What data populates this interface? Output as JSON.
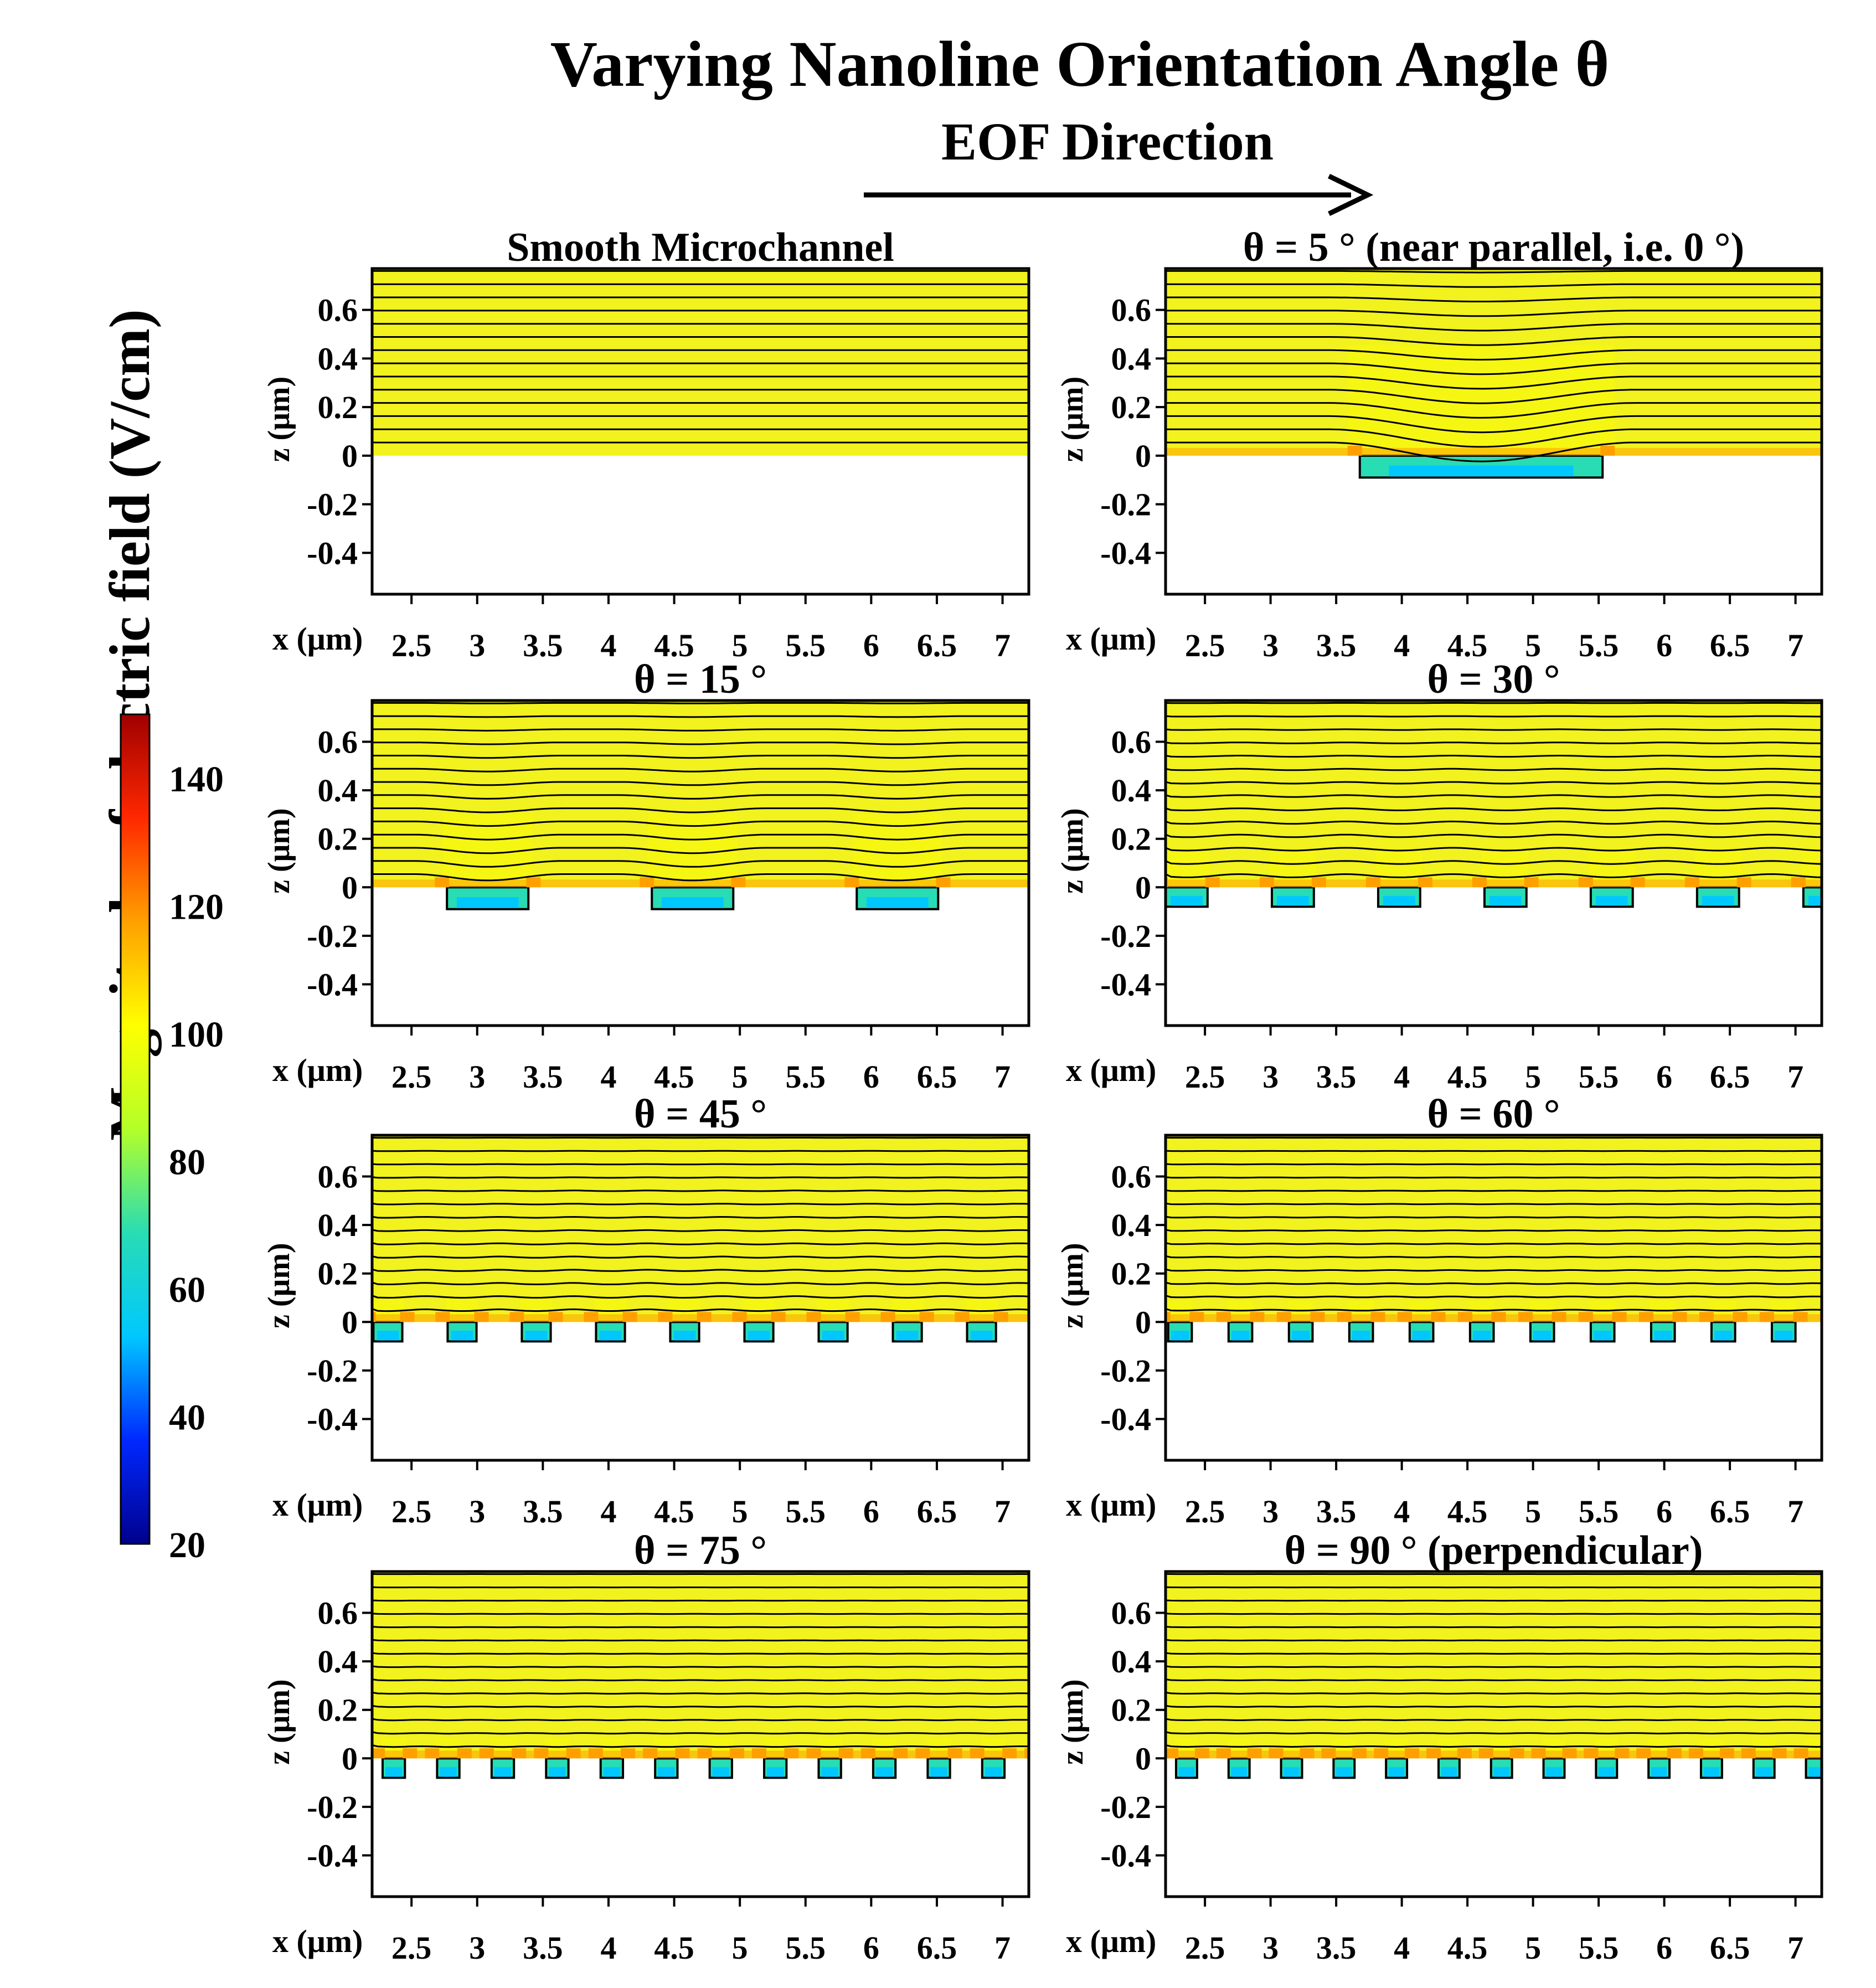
{
  "figure": {
    "title": "Varying Nanoline Orientation Angle θ",
    "arrow_label": "EOF Direction",
    "colorbar": {
      "label": "Magnitude of electric field (V/cm)",
      "min": 20,
      "max": 150,
      "ticks": [
        "140",
        "120",
        "100",
        "80",
        "60",
        "40",
        "20"
      ],
      "tick_values": [
        140,
        120,
        100,
        80,
        60,
        40,
        20
      ],
      "colors": [
        "#00008c",
        "#0028ff",
        "#00c8ff",
        "#28dcb4",
        "#b4ff28",
        "#ffff00",
        "#ffa000",
        "#ff2800",
        "#a00000"
      ]
    },
    "field_color": "#f2f21e",
    "streamline_color": "#000000"
  },
  "chart_data": [
    {
      "type": "heatmap",
      "title": "Smooth Microchannel",
      "xlabel": "x (μm)",
      "ylabel": "z (μm)",
      "xlim": [
        2.2,
        7.2
      ],
      "ylim": [
        -0.57,
        0.77
      ],
      "xticks": [
        "2.5",
        "3",
        "3.5",
        "4",
        "4.5",
        "5",
        "5.5",
        "6",
        "6.5",
        "7"
      ],
      "yticks": [
        "0.6",
        "0.4",
        "0.2",
        "0",
        "-0.2",
        "-0.4"
      ],
      "angle_deg": null,
      "groove_width": 0,
      "groove_depth": 0,
      "groove_period": 0,
      "groove_offset": 0,
      "streamlines": 14
    },
    {
      "type": "heatmap",
      "title": "θ = 5 ° (near parallel, i.e. 0 °)",
      "xlabel": "x (μm)",
      "ylabel": "z (μm)",
      "xlim": [
        2.2,
        7.2
      ],
      "ylim": [
        -0.57,
        0.77
      ],
      "xticks": [
        "2.5",
        "3",
        "3.5",
        "4",
        "4.5",
        "5",
        "5.5",
        "6",
        "6.5",
        "7"
      ],
      "yticks": [
        "0.6",
        "0.4",
        "0.2",
        "0",
        "-0.2",
        "-0.4"
      ],
      "angle_deg": 5,
      "groove_width": 1.85,
      "groove_depth": 0.09,
      "groove_period": 10,
      "groove_offset": 3.68,
      "streamlines": 14
    },
    {
      "type": "heatmap",
      "title": "θ = 15 °",
      "xlabel": "x (μm)",
      "ylabel": "z (μm)",
      "xlim": [
        2.2,
        7.2
      ],
      "ylim": [
        -0.57,
        0.77
      ],
      "xticks": [
        "2.5",
        "3",
        "3.5",
        "4",
        "4.5",
        "5",
        "5.5",
        "6",
        "6.5",
        "7"
      ],
      "yticks": [
        "0.6",
        "0.4",
        "0.2",
        "0",
        "-0.2",
        "-0.4"
      ],
      "angle_deg": 15,
      "groove_width": 0.62,
      "groove_depth": 0.09,
      "groove_period": 1.56,
      "groove_offset": 2.77,
      "streamlines": 14
    },
    {
      "type": "heatmap",
      "title": "θ = 30 °",
      "xlabel": "x (μm)",
      "ylabel": "z (μm)",
      "xlim": [
        2.2,
        7.2
      ],
      "ylim": [
        -0.57,
        0.77
      ],
      "xticks": [
        "2.5",
        "3",
        "3.5",
        "4",
        "4.5",
        "5",
        "5.5",
        "6",
        "6.5",
        "7"
      ],
      "yticks": [
        "0.6",
        "0.4",
        "0.2",
        "0",
        "-0.2",
        "-0.4"
      ],
      "angle_deg": 30,
      "groove_width": 0.32,
      "groove_depth": 0.08,
      "groove_period": 0.81,
      "groove_offset": 2.2,
      "streamlines": 14
    },
    {
      "type": "heatmap",
      "title": "θ = 45 °",
      "xlabel": "x (μm)",
      "ylabel": "z (μm)",
      "xlim": [
        2.2,
        7.2
      ],
      "ylim": [
        -0.57,
        0.77
      ],
      "xticks": [
        "2.5",
        "3",
        "3.5",
        "4",
        "4.5",
        "5",
        "5.5",
        "6",
        "6.5",
        "7"
      ],
      "yticks": [
        "0.6",
        "0.4",
        "0.2",
        "0",
        "-0.2",
        "-0.4"
      ],
      "angle_deg": 45,
      "groove_width": 0.22,
      "groove_depth": 0.08,
      "groove_period": 0.565,
      "groove_offset": 2.21,
      "streamlines": 14
    },
    {
      "type": "heatmap",
      "title": "θ = 60 °",
      "xlabel": "x (μm)",
      "ylabel": "z (μm)",
      "xlim": [
        2.2,
        7.2
      ],
      "ylim": [
        -0.57,
        0.77
      ],
      "xticks": [
        "2.5",
        "3",
        "3.5",
        "4",
        "4.5",
        "5",
        "5.5",
        "6",
        "6.5",
        "7"
      ],
      "yticks": [
        "0.6",
        "0.4",
        "0.2",
        "0",
        "-0.2",
        "-0.4"
      ],
      "angle_deg": 60,
      "groove_width": 0.18,
      "groove_depth": 0.08,
      "groove_period": 0.46,
      "groove_offset": 2.22,
      "streamlines": 14
    },
    {
      "type": "heatmap",
      "title": "θ = 75 °",
      "xlabel": "x (μm)",
      "ylabel": "z (μm)",
      "xlim": [
        2.2,
        7.2
      ],
      "ylim": [
        -0.57,
        0.77
      ],
      "xticks": [
        "2.5",
        "3",
        "3.5",
        "4",
        "4.5",
        "5",
        "5.5",
        "6",
        "6.5",
        "7"
      ],
      "yticks": [
        "0.6",
        "0.4",
        "0.2",
        "0",
        "-0.2",
        "-0.4"
      ],
      "angle_deg": 75,
      "groove_width": 0.17,
      "groove_depth": 0.08,
      "groove_period": 0.415,
      "groove_offset": 2.28,
      "streamlines": 14
    },
    {
      "type": "heatmap",
      "title": "θ = 90 ° (perpendicular)",
      "xlabel": "x (μm)",
      "ylabel": "z (μm)",
      "xlim": [
        2.2,
        7.2
      ],
      "ylim": [
        -0.57,
        0.77
      ],
      "xticks": [
        "2.5",
        "3",
        "3.5",
        "4",
        "4.5",
        "5",
        "5.5",
        "6",
        "6.5",
        "7"
      ],
      "yticks": [
        "0.6",
        "0.4",
        "0.2",
        "0",
        "-0.2",
        "-0.4"
      ],
      "angle_deg": 90,
      "groove_width": 0.16,
      "groove_depth": 0.08,
      "groove_period": 0.4,
      "groove_offset": 2.28,
      "streamlines": 14
    }
  ]
}
